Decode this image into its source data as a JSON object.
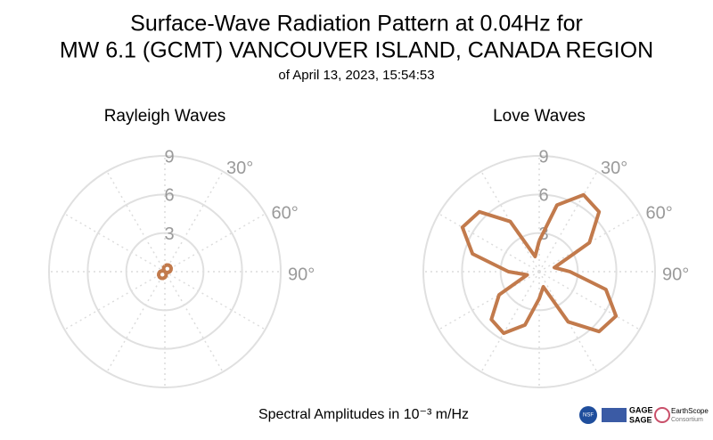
{
  "title": [
    "Surface-Wave Radiation Pattern at 0.04Hz for",
    "MW 6.1 (GCMT) VANCOUVER ISLAND, CANADA REGION"
  ],
  "subtitle": "of April 13, 2023, 15:54:53",
  "footer": "Spectral Amplitudes in 10⁻³ m/Hz",
  "logos": [
    "NSF",
    "GAGE",
    "SAGE",
    "EarthScope",
    "Consortium"
  ],
  "chart_data": [
    {
      "type": "polar",
      "title": "Rayleigh Waves",
      "color": "#c27a4c",
      "theta": [
        0,
        15,
        30,
        45,
        60,
        75,
        90,
        105,
        120,
        135,
        150,
        165,
        180,
        195,
        210,
        225,
        240,
        255,
        270,
        285,
        300,
        315,
        330,
        345,
        360
      ],
      "r": [
        0.46,
        0.54,
        0.59,
        0.6,
        0.56,
        0.49,
        0.39,
        0.25,
        0.1,
        0.05,
        0.21,
        0.34,
        0.46,
        0.54,
        0.59,
        0.6,
        0.56,
        0.49,
        0.39,
        0.25,
        0.1,
        0.05,
        0.21,
        0.34,
        0.46
      ],
      "rlim": [
        0,
        9
      ],
      "rticks": [
        3,
        6,
        9
      ],
      "thetaticks": [
        {
          "value": 30,
          "label": "30°"
        },
        {
          "value": 60,
          "label": "60°"
        },
        {
          "value": 90,
          "label": "90°"
        }
      ],
      "thetagrid": [
        0,
        30,
        60,
        90,
        120,
        150,
        180,
        210,
        240,
        270,
        300,
        330
      ]
    },
    {
      "type": "polar",
      "title": "Love Waves",
      "color": "#c27a4c",
      "theta": [
        0,
        15,
        30,
        45,
        60,
        75,
        90,
        105,
        120,
        135,
        150,
        165,
        180,
        195,
        210,
        225,
        240,
        255,
        270,
        285,
        300,
        315,
        330,
        345,
        360
      ],
      "r": [
        2.39,
        5.36,
        6.89,
        6.58,
        4.5,
        1.22,
        2.39,
        5.36,
        6.89,
        6.58,
        4.5,
        1.22,
        2.1,
        4.29,
        5.52,
        5.26,
        3.6,
        0.97,
        2.39,
        5.36,
        6.89,
        6.58,
        4.5,
        1.22,
        2.39
      ],
      "rlim": [
        0,
        9
      ],
      "rticks": [
        3,
        6,
        9
      ],
      "thetaticks": [
        {
          "value": 30,
          "label": "30°"
        },
        {
          "value": 60,
          "label": "60°"
        },
        {
          "value": 90,
          "label": "90°"
        }
      ],
      "thetagrid": [
        0,
        30,
        60,
        90,
        120,
        150,
        180,
        210,
        240,
        270,
        300,
        330
      ]
    }
  ]
}
